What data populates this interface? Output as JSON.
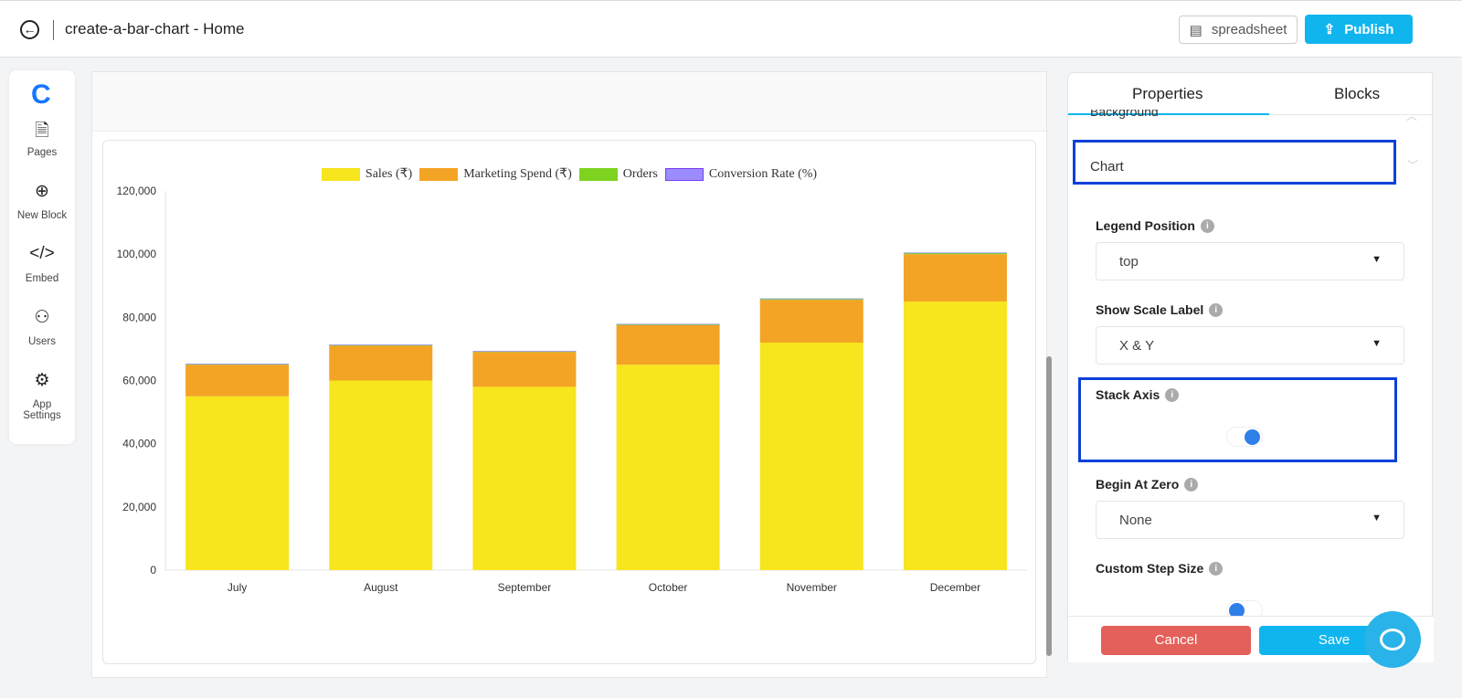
{
  "header": {
    "title": "create-a-bar-chart - Home",
    "spreadsheet_label": "spreadsheet",
    "publish_label": "Publish"
  },
  "sidebar": {
    "items": [
      {
        "label": "Pages",
        "icon": "document-icon"
      },
      {
        "label": "New Block",
        "icon": "plus-circle-icon"
      },
      {
        "label": "Embed",
        "icon": "code-icon"
      },
      {
        "label": "Users",
        "icon": "users-icon"
      },
      {
        "label": "App Settings",
        "icon": "gear-icon"
      }
    ]
  },
  "chart_data": {
    "type": "bar",
    "stacked": true,
    "legend_position": "top",
    "grid": false,
    "categories": [
      "July",
      "August",
      "September",
      "October",
      "November",
      "December"
    ],
    "ylim": [
      0,
      120000
    ],
    "yticks": [
      "0",
      "20,000",
      "40,000",
      "60,000",
      "80,000",
      "100,000",
      "120,000"
    ],
    "ytick_values": [
      0,
      20000,
      40000,
      60000,
      80000,
      100000,
      120000
    ],
    "series": [
      {
        "name": "Sales (₹)",
        "color": "#f7e51d",
        "values": [
          55000,
          60000,
          58000,
          65000,
          72000,
          85000
        ]
      },
      {
        "name": "Marketing Spend (₹)",
        "color": "#f3a425",
        "values": [
          10000,
          11000,
          11000,
          12500,
          13500,
          15000
        ]
      },
      {
        "name": "Orders",
        "color": "#7ed321",
        "values": [
          320,
          350,
          330,
          400,
          450,
          500
        ]
      },
      {
        "name": "Conversion Rate (%)",
        "color": "#9b8cff",
        "values": [
          2.5,
          2.8,
          2.6,
          3.0,
          3.2,
          3.5
        ]
      }
    ]
  },
  "panel": {
    "tabs": [
      "Properties",
      "Blocks"
    ],
    "section_background": "Background",
    "section_chart": "Chart",
    "legend_position": {
      "label": "Legend Position",
      "value": "top"
    },
    "show_scale_label": {
      "label": "Show Scale Label",
      "value": "X & Y"
    },
    "stack_axis": {
      "label": "Stack Axis",
      "on": true
    },
    "begin_at_zero": {
      "label": "Begin At Zero",
      "value": "None"
    },
    "custom_step_size": {
      "label": "Custom Step Size",
      "on": false
    },
    "cancel": "Cancel",
    "save": "Save"
  }
}
